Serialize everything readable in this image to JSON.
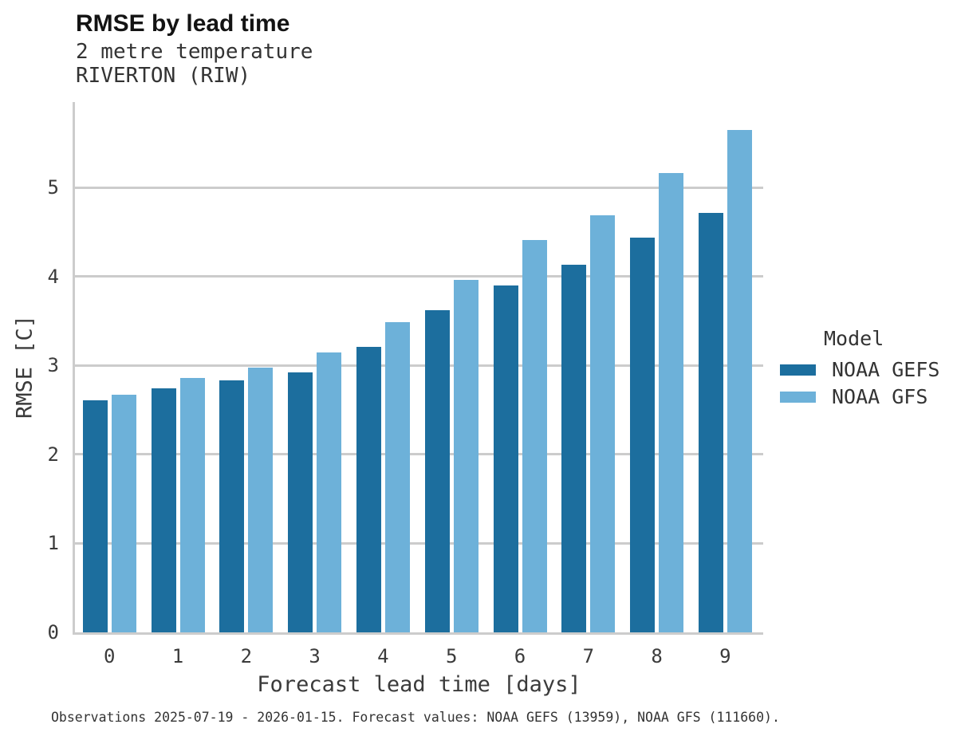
{
  "header": {
    "title": "RMSE by lead time",
    "subtitle": "2 metre temperature",
    "station": "RIVERTON (RIW)"
  },
  "chart_data": {
    "type": "bar",
    "title": "RMSE by lead time",
    "subtitle": "2 metre temperature",
    "station": "RIVERTON (RIW)",
    "categories": [
      "0",
      "1",
      "2",
      "3",
      "4",
      "5",
      "6",
      "7",
      "8",
      "9"
    ],
    "series": [
      {
        "name": "NOAA GEFS",
        "color": "#1c6e9e",
        "values": [
          2.61,
          2.74,
          2.83,
          2.92,
          3.21,
          3.62,
          3.9,
          4.13,
          4.44,
          4.71
        ]
      },
      {
        "name": "NOAA GFS",
        "color": "#6db1d9",
        "values": [
          2.67,
          2.86,
          2.98,
          3.15,
          3.49,
          3.96,
          4.41,
          4.69,
          5.16,
          5.65
        ]
      }
    ],
    "xlabel": "Forecast lead time [days]",
    "ylabel": "RMSE [C]",
    "yticks": [
      0,
      1,
      2,
      3,
      4,
      5
    ],
    "ylim": [
      0,
      5.96
    ],
    "grid": true,
    "gridline_color": "#cccccc",
    "legend_position": "right"
  },
  "legend": {
    "title": "Model"
  },
  "caption": "Observations 2025-07-19 - 2026-01-15. Forecast values: NOAA GEFS (13959), NOAA GFS (111660)."
}
